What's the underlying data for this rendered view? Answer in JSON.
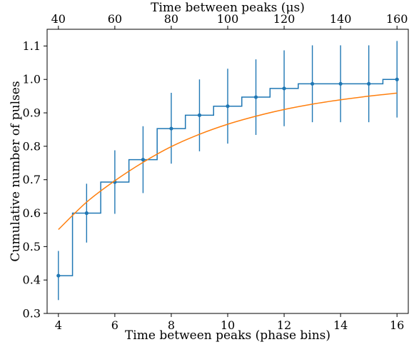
{
  "chart_data": {
    "type": "line",
    "xlabel": "Time between peaks (phase bins)",
    "x2label": "Time between peaks (μs)",
    "ylabel": "Cumulative number of pulses",
    "xlim": [
      3.6,
      16.4
    ],
    "ylim": [
      0.3,
      1.15
    ],
    "x_ticks": [
      4,
      6,
      8,
      10,
      12,
      14,
      16
    ],
    "x_tick_labels": [
      "4",
      "6",
      "8",
      "10",
      "12",
      "14",
      "16"
    ],
    "y_ticks": [
      0.3,
      0.4,
      0.5,
      0.6,
      0.7,
      0.8,
      0.9,
      1.0,
      1.1
    ],
    "y_tick_labels": [
      "0.3",
      "0.4",
      "0.5",
      "0.6",
      "0.7",
      "0.8",
      "0.9",
      "1.0",
      "1.1"
    ],
    "x2_ticks": [
      40,
      60,
      80,
      100,
      120,
      140,
      160
    ],
    "x2_tick_labels": [
      "40",
      "60",
      "80",
      "100",
      "120",
      "140",
      "160"
    ],
    "x2_per_x": 10,
    "grid": false,
    "series": [
      {
        "kind": "step-errorbar",
        "color": "#1f77b4",
        "x": [
          4,
          5,
          6,
          7,
          8,
          9,
          10,
          11,
          12,
          13,
          14,
          15,
          16
        ],
        "y": [
          0.413,
          0.6,
          0.693,
          0.76,
          0.853,
          0.893,
          0.92,
          0.947,
          0.973,
          0.987,
          0.987,
          0.987,
          1.0
        ],
        "yerr_low": [
          0.34,
          0.512,
          0.598,
          0.66,
          0.748,
          0.785,
          0.808,
          0.834,
          0.86,
          0.872,
          0.872,
          0.872,
          0.886
        ],
        "yerr_high": [
          0.487,
          0.688,
          0.788,
          0.86,
          0.96,
          1.0,
          1.032,
          1.06,
          1.087,
          1.102,
          1.102,
          1.102,
          1.115
        ]
      },
      {
        "kind": "curve",
        "color": "#ff7f0e",
        "x": [
          4,
          5,
          6,
          7,
          8,
          9,
          10,
          11,
          12,
          13,
          14,
          15,
          16
        ],
        "y": [
          0.551,
          0.633,
          0.697,
          0.752,
          0.799,
          0.836,
          0.866,
          0.89,
          0.91,
          0.926,
          0.939,
          0.95,
          0.959
        ]
      }
    ]
  }
}
